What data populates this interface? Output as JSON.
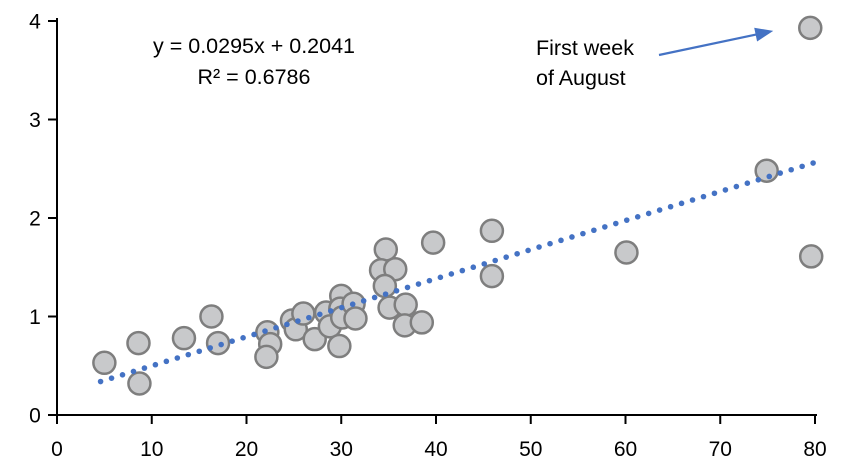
{
  "chart_data": {
    "type": "scatter",
    "title": "",
    "xlabel": "",
    "ylabel": "",
    "grid": false,
    "legend": false,
    "x_axis": {
      "min": 0,
      "max": 80,
      "ticks": [
        0,
        10,
        20,
        30,
        40,
        50,
        60,
        70,
        80
      ]
    },
    "y_axis": {
      "min": 0,
      "max": 4,
      "ticks": [
        0,
        1,
        2,
        3,
        4
      ]
    },
    "points": [
      [
        5.0,
        0.53
      ],
      [
        8.6,
        0.73
      ],
      [
        8.7,
        0.32
      ],
      [
        13.4,
        0.78
      ],
      [
        16.3,
        1.0
      ],
      [
        17.0,
        0.73
      ],
      [
        22.2,
        0.84
      ],
      [
        22.5,
        0.72
      ],
      [
        22.1,
        0.59
      ],
      [
        24.8,
        0.96
      ],
      [
        25.2,
        0.87
      ],
      [
        26.0,
        1.03
      ],
      [
        27.2,
        0.77
      ],
      [
        28.4,
        1.04
      ],
      [
        28.8,
        0.9
      ],
      [
        30.0,
        1.21
      ],
      [
        29.9,
        1.08
      ],
      [
        30.1,
        0.99
      ],
      [
        29.8,
        0.7
      ],
      [
        31.3,
        1.13
      ],
      [
        31.5,
        0.98
      ],
      [
        34.7,
        1.68
      ],
      [
        34.2,
        1.47
      ],
      [
        35.7,
        1.48
      ],
      [
        34.6,
        1.31
      ],
      [
        35.1,
        1.09
      ],
      [
        36.8,
        1.12
      ],
      [
        36.7,
        0.91
      ],
      [
        38.5,
        0.94
      ],
      [
        39.7,
        1.75
      ],
      [
        45.9,
        1.87
      ],
      [
        45.9,
        1.41
      ],
      [
        60.1,
        1.65
      ],
      [
        74.9,
        2.48
      ],
      [
        79.5,
        3.93
      ],
      [
        79.6,
        1.61
      ]
    ],
    "trendline": {
      "slope": 0.0295,
      "intercept": 0.2041,
      "r_squared": 0.6786,
      "equation_label": "y = 0.0295x + 0.2041",
      "r2_label": "R² = 0.6786",
      "style": "dotted",
      "x_start": 4.6,
      "x_end": 79.8
    },
    "annotation": {
      "line1": "First week",
      "line2": "of August",
      "target_point": [
        79.5,
        3.93
      ]
    },
    "colors": {
      "marker_fill": "#c8c9cb",
      "marker_stroke": "#7e7e7e",
      "trend_blue": "#4472c4",
      "axis": "#000000",
      "text": "#000000"
    }
  }
}
